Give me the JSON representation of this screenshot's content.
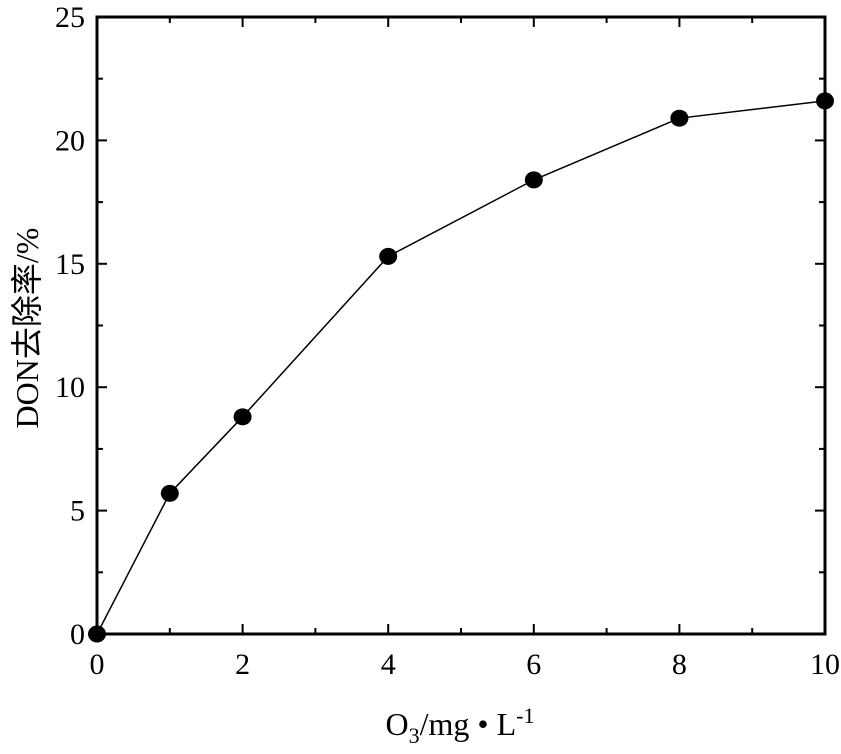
{
  "chart_data": {
    "type": "line",
    "x": [
      0,
      1,
      2,
      4,
      6,
      8,
      10
    ],
    "series": [
      {
        "values": [
          0,
          5.7,
          8.8,
          15.3,
          18.4,
          20.9,
          21.6
        ]
      }
    ],
    "xlabel": {
      "base": "O",
      "sub": "3",
      "mid": "/mg • L",
      "sup": "-1"
    },
    "ylabel": "DON去除率/%",
    "xlim": [
      0,
      10
    ],
    "ylim": [
      0,
      25
    ],
    "x_ticks": [
      "0",
      "2",
      "4",
      "6",
      "8",
      "10"
    ],
    "y_ticks": [
      "0",
      "5",
      "10",
      "15",
      "20",
      "25"
    ],
    "x_tick_values": [
      0,
      2,
      4,
      6,
      8,
      10
    ],
    "y_tick_values": [
      0,
      5,
      10,
      15,
      20,
      25
    ],
    "x_minor_ticks": [
      1,
      3,
      5,
      7,
      9
    ],
    "y_minor_ticks": [
      2.5,
      7.5,
      12.5,
      17.5,
      22.5
    ],
    "grid": false,
    "line_color": "#000000",
    "marker_color": "#000000"
  }
}
